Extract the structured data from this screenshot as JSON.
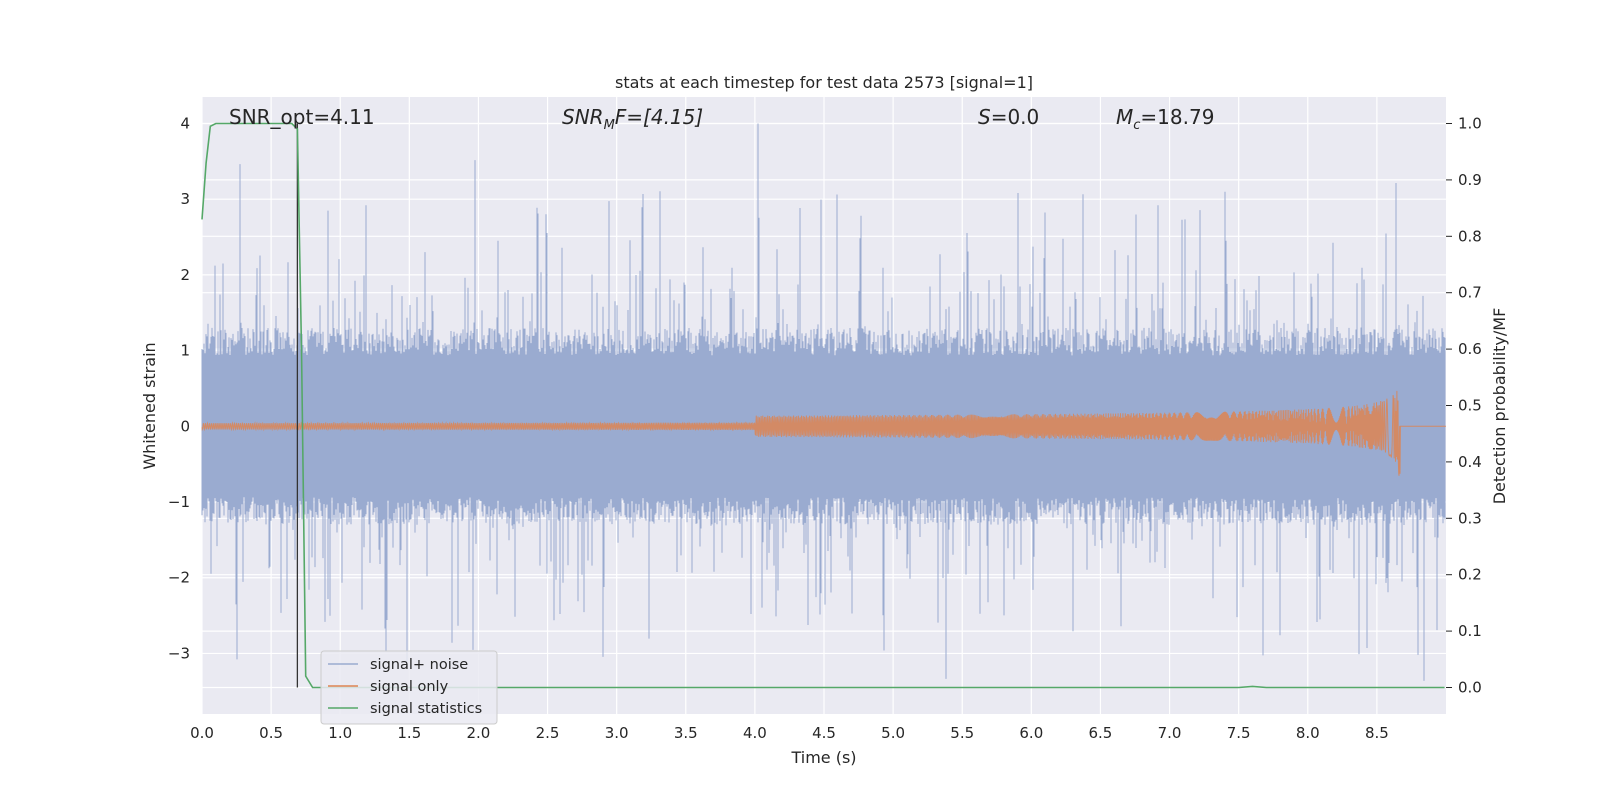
{
  "chart_data": {
    "type": "line",
    "title": "stats at each timestep for test data 2573 [signal=1]",
    "xlabel": "Time (s)",
    "ylabel": "Whitened strain",
    "ylabel_right": "Detection probability/MF",
    "xlim": [
      0,
      9.0
    ],
    "ylim": [
      -3.8,
      4.35
    ],
    "ylim_right": [
      -0.047,
      1.047
    ],
    "x_ticks": [
      "0.0",
      "0.5",
      "1.0",
      "1.5",
      "2.0",
      "2.5",
      "3.0",
      "3.5",
      "4.0",
      "4.5",
      "5.0",
      "5.5",
      "6.0",
      "6.5",
      "7.0",
      "7.5",
      "8.0",
      "8.5"
    ],
    "y_ticks": [
      "4",
      "3",
      "2",
      "1",
      "0",
      "−1",
      "−2",
      "−3"
    ],
    "y_ticks_right": [
      "1.0",
      "0.9",
      "0.8",
      "0.7",
      "0.6",
      "0.5",
      "0.4",
      "0.3",
      "0.2",
      "0.1",
      "0.0"
    ],
    "grid": true,
    "legend_position": "lower-left",
    "annotations": {
      "snr_opt": "SNR_opt=4.11",
      "snr_mf_sym": "SNR",
      "snr_mf_sub": "M",
      "snr_mf_rest": "F=[4.15]",
      "s_sym": "S",
      "s_rest": "=0.0",
      "mc_sym": "M",
      "mc_sub": "c",
      "mc_rest": "=18.79"
    },
    "marker_time": 0.69,
    "series": [
      {
        "name": "signal+ noise",
        "color": "#9aabd0",
        "axis": "left",
        "kind": "noise",
        "envelope_typical": [
          -1.3,
          1.3
        ],
        "range": [
          -3.45,
          4.0
        ]
      },
      {
        "name": "signal only",
        "color": "#dd8452",
        "axis": "left",
        "kind": "chirp",
        "t_merge": 8.67,
        "peak_amplitude": 0.82
      },
      {
        "name": "signal statistics",
        "color": "#55a868",
        "axis": "right",
        "kind": "line",
        "x": [
          0.0,
          0.03,
          0.06,
          0.1,
          0.2,
          0.4,
          0.6,
          0.65,
          0.69,
          0.72,
          0.75,
          0.8,
          0.85,
          1.0,
          2.0,
          4.0,
          6.0,
          7.5,
          7.6,
          7.7,
          8.0,
          8.5,
          8.99
        ],
        "values": [
          0.83,
          0.93,
          0.995,
          1.0,
          1.0,
          1.0,
          1.0,
          1.0,
          0.99,
          0.6,
          0.02,
          0.0,
          0.0,
          0.0,
          0.0,
          0.0,
          0.0,
          0.0,
          0.002,
          0.0,
          0.0,
          0.0,
          0.0
        ]
      }
    ]
  }
}
